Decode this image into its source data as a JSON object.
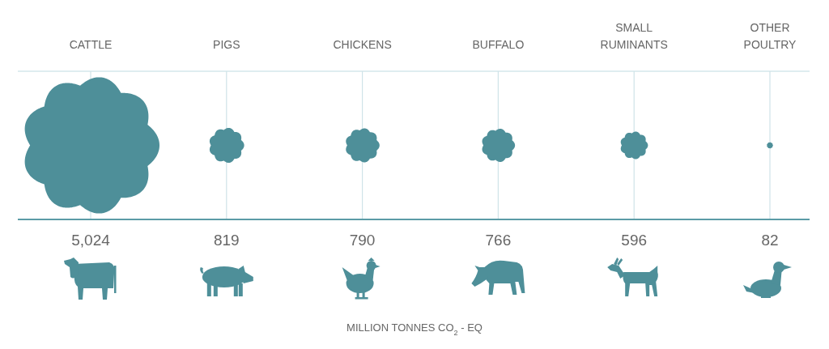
{
  "chart_data": {
    "type": "other",
    "categories": [
      "CATTLE",
      "PIGS",
      "CHICKENS",
      "BUFFALO",
      "SMALL RUMINANTS",
      "OTHER POULTRY"
    ],
    "values": [
      5024,
      819,
      790,
      766,
      596,
      82
    ],
    "value_labels": [
      "5,024",
      "819",
      "790",
      "766",
      "596",
      "82"
    ],
    "color": "#4e8f99",
    "xlabel": "MILLION TONNES CO$_{2}$ - EQ"
  }
}
